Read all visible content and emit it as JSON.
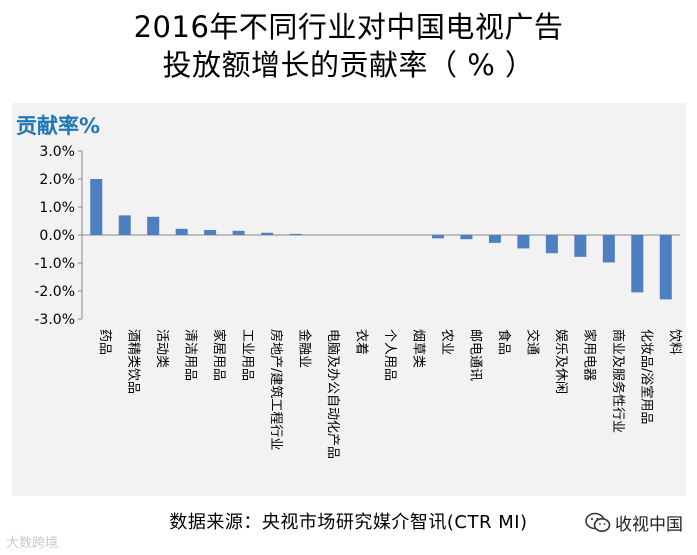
{
  "title_line1": "2016年不同行业对中国电视广告",
  "title_line2": "投放额增长的贡献率（ % ）",
  "source": "数据来源：央视市场研究媒介智讯(CTR MI)",
  "watermark_left": "大数跨境",
  "watermark_right": "收视中国",
  "colors": {
    "bar": "#4e7fc0",
    "panel": "#f2f2f2",
    "axis_label": "#1f77b4"
  },
  "chart_data": {
    "type": "bar",
    "ylabel": "贡献率%",
    "ylim": [
      -3.0,
      3.0
    ],
    "yticks": [
      "3.0%",
      "2.0%",
      "1.0%",
      "0.0%",
      "-1.0%",
      "-2.0%",
      "-3.0%"
    ],
    "grid": false,
    "categories": [
      "药品",
      "酒精类饮品",
      "活动类",
      "清洁用品",
      "家居用品",
      "工业用品",
      "房地产/建筑工程行业",
      "金融业",
      "电脑及办公自动化产品",
      "衣着",
      "个人用品",
      "烟草类",
      "农业",
      "邮电通讯",
      "食品",
      "交通",
      "娱乐及休闲",
      "家用电器",
      "商业及服务性行业",
      "化妆品/浴室用品",
      "饮料"
    ],
    "values": [
      2.0,
      0.7,
      0.65,
      0.22,
      0.18,
      0.15,
      0.08,
      0.04,
      0.0,
      0.0,
      0.0,
      0.0,
      -0.12,
      -0.15,
      -0.28,
      -0.48,
      -0.65,
      -0.78,
      -0.98,
      -2.05,
      -2.3
    ]
  }
}
